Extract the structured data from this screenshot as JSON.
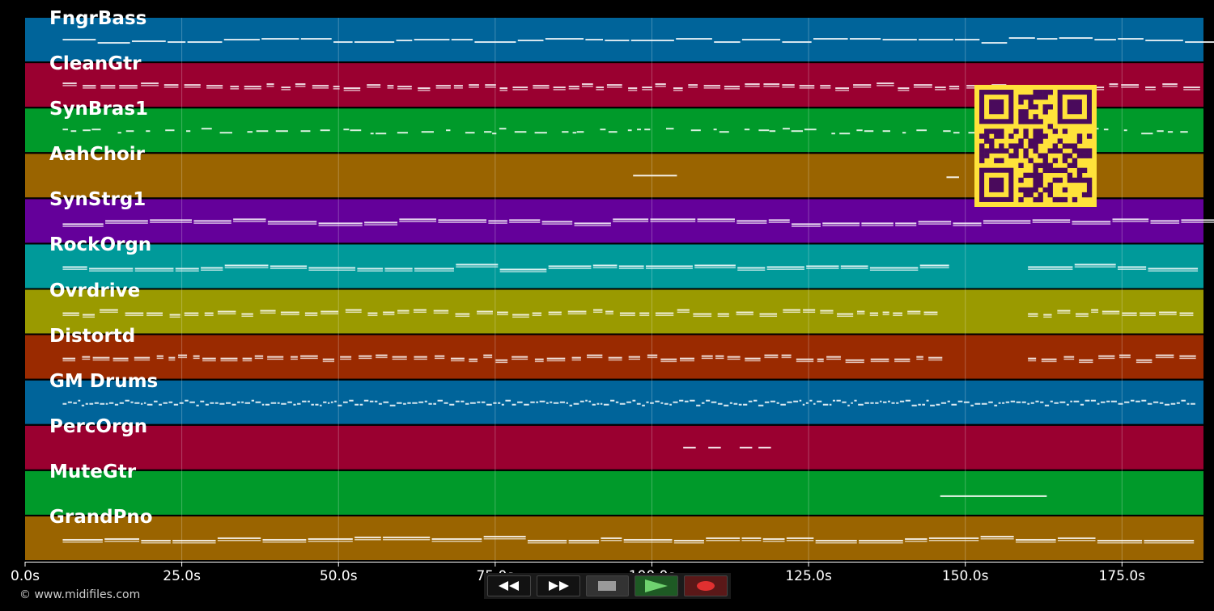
{
  "timeline": {
    "duration_s": 188,
    "ticks": [
      "0.0s",
      "25.0s",
      "50.0s",
      "75.0s",
      "100.0s",
      "125.0s",
      "150.0s",
      "175.0s"
    ],
    "tick_values_s": [
      0,
      25,
      50,
      75,
      100,
      125,
      150,
      175
    ]
  },
  "tracks": [
    {
      "name": "FngrBass",
      "color": "#00649a",
      "note_density": "sparse-line"
    },
    {
      "name": "CleanGtr",
      "color": "#9a0030",
      "note_density": "dashed"
    },
    {
      "name": "SynBras1",
      "color": "#009a2a",
      "note_density": "scattered"
    },
    {
      "name": "AahChoir",
      "color": "#9a6400",
      "note_density": "minimal"
    },
    {
      "name": "SynStrg1",
      "color": "#64009a",
      "note_density": "sustained"
    },
    {
      "name": "RockOrgn",
      "color": "#009a9a",
      "note_density": "sustained"
    },
    {
      "name": "Ovrdrive",
      "color": "#9a9a00",
      "note_density": "dashed"
    },
    {
      "name": "Distortd",
      "color": "#9a2a00",
      "note_density": "dashed"
    },
    {
      "name": "GM Drums",
      "color": "#00649a",
      "note_density": "dense"
    },
    {
      "name": "PercOrgn",
      "color": "#9a0030",
      "note_density": "minimal"
    },
    {
      "name": "MuteGtr",
      "color": "#009a2a",
      "note_density": "minimal"
    },
    {
      "name": "GrandPno",
      "color": "#9a6400",
      "note_density": "sustained"
    }
  ],
  "transport": {
    "rewind_icon": "rewind-icon",
    "forward_icon": "fast-forward-icon",
    "stop_icon": "stop-icon",
    "play_icon": "play-icon",
    "record_icon": "record-icon"
  },
  "footer": {
    "copyright": "© www.midifiles.com"
  },
  "qr": {
    "color_fg": "#4a0a5c",
    "color_bg": "#ffe23a"
  }
}
